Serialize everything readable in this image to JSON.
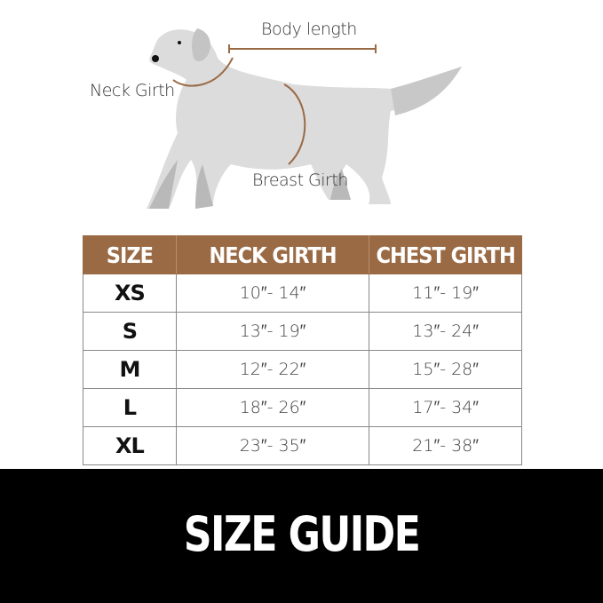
{
  "diagram": {
    "labels": {
      "body_length": "Body length",
      "neck_girth": "Neck Girth",
      "breast_girth": "Breast Girth"
    },
    "colors": {
      "dog": "#dcdcdc",
      "dog_shadow": "#b9b9b9",
      "measure_line": "#9a6a45"
    }
  },
  "table": {
    "headers": [
      "SIZE",
      "NECK GIRTH",
      "CHEST GIRTH"
    ],
    "header_color": "#9a6a45",
    "rows": [
      {
        "size": "XS",
        "neck": "10″- 14″",
        "chest": "11″- 19″"
      },
      {
        "size": "S",
        "neck": "13″- 19″",
        "chest": "13″- 24″"
      },
      {
        "size": "M",
        "neck": "12″- 22″",
        "chest": "15″- 28″"
      },
      {
        "size": "L",
        "neck": "18″- 26″",
        "chest": "17″- 34″"
      },
      {
        "size": "XL",
        "neck": "23″- 35″",
        "chest": "21″- 38″"
      }
    ]
  },
  "footer": {
    "title": "SIZE GUIDE"
  }
}
